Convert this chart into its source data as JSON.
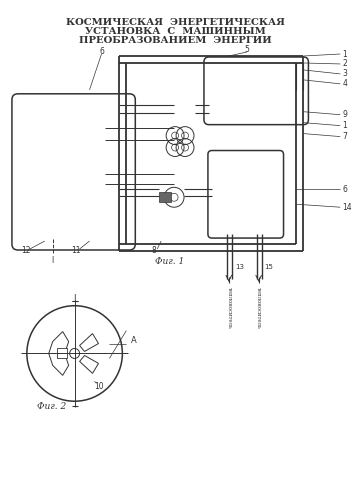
{
  "title_line1": "КОСМИЧЕСКАЯ  ЭНЕРГЕТИЧЕСКАЯ",
  "title_line2": "УСТАНОВКА  С  МАШИННЫМ",
  "title_line3": "ПРЕОБРАЗОВАНИЕМ  ЭНЕРГИИ",
  "fig1_label": "Фиг. 1",
  "fig2_label": "Фиг. 2",
  "line_color": "#333333",
  "dark_fill": "#666666",
  "medium_fill": "#999999"
}
